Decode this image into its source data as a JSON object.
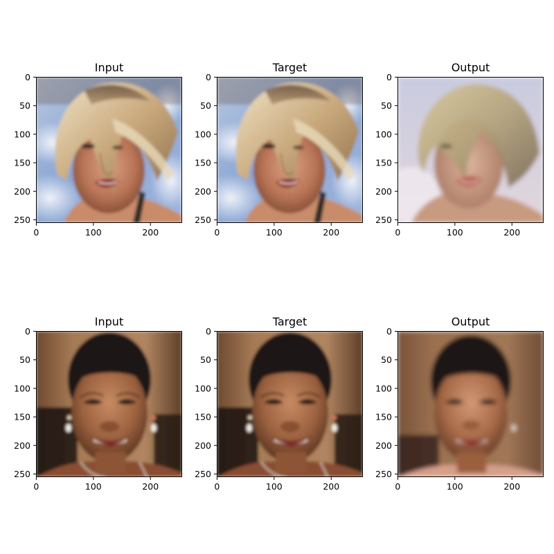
{
  "figure": {
    "panels": [
      {
        "title": "Input",
        "image": "portrait-blonde-woman-sky",
        "xticks": [
          "0",
          "100",
          "200"
        ],
        "yticks": [
          "0",
          "50",
          "100",
          "150",
          "200",
          "250"
        ]
      },
      {
        "title": "Target",
        "image": "portrait-blonde-woman-sky",
        "xticks": [
          "0",
          "100",
          "200"
        ],
        "yticks": [
          "0",
          "50",
          "100",
          "150",
          "200",
          "250"
        ]
      },
      {
        "title": "Output",
        "image": "portrait-blonde-woman-reconstructed",
        "xticks": [
          "0",
          "100",
          "200"
        ],
        "yticks": [
          "0",
          "50",
          "100",
          "150",
          "200",
          "250"
        ]
      },
      {
        "title": "Input",
        "image": "portrait-smiling-woman-dark-hair",
        "xticks": [
          "0",
          "100",
          "200"
        ],
        "yticks": [
          "0",
          "50",
          "100",
          "150",
          "200",
          "250"
        ]
      },
      {
        "title": "Target",
        "image": "portrait-smiling-woman-dark-hair",
        "xticks": [
          "0",
          "100",
          "200"
        ],
        "yticks": [
          "0",
          "50",
          "100",
          "150",
          "200",
          "250"
        ]
      },
      {
        "title": "Output",
        "image": "portrait-smiling-woman-reconstructed",
        "xticks": [
          "0",
          "100",
          "200"
        ],
        "yticks": [
          "0",
          "50",
          "100",
          "150",
          "200",
          "250"
        ]
      }
    ],
    "image_extent": [
      256,
      256
    ]
  }
}
